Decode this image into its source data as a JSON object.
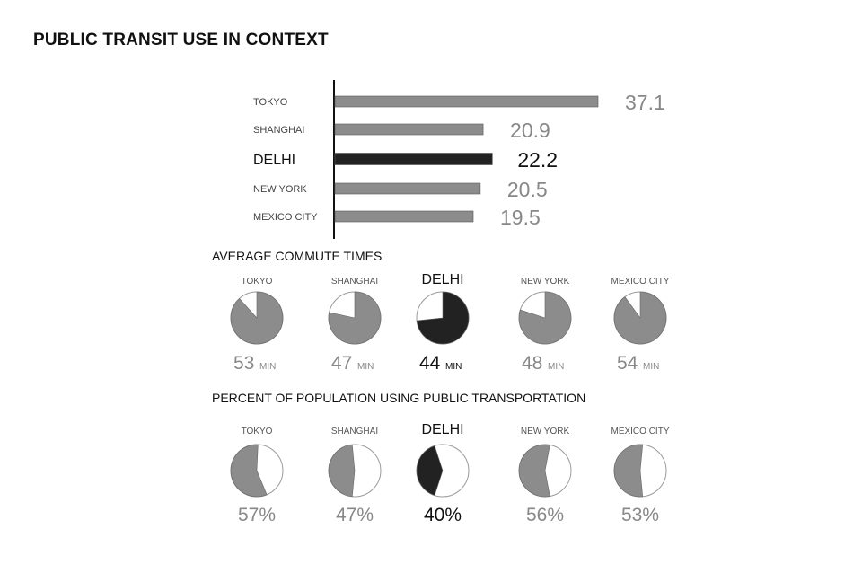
{
  "title": "PUBLIC TRANSIT USE IN CONTEXT",
  "colors": {
    "bar": "#8c8c8c",
    "highlight": "#222222",
    "pie_empty": "#ffffff",
    "pie_stroke": "#9a9a9a"
  },
  "highlight_city": "DELHI",
  "chart_data": [
    {
      "type": "bar",
      "orientation": "horizontal",
      "title": "",
      "categories": [
        "TOKYO",
        "SHANGHAI",
        "DELHI",
        "NEW YORK",
        "MEXICO CITY"
      ],
      "values": [
        37.1,
        20.9,
        22.2,
        20.5,
        19.5
      ],
      "labels": [
        "37.1",
        "20.9",
        "22.2",
        "20.5",
        "19.5"
      ],
      "xlim": [
        0,
        37.1
      ]
    },
    {
      "type": "pie",
      "title": "AVERAGE COMMUTE TIMES",
      "categories": [
        "TOKYO",
        "SHANGHAI",
        "DELHI",
        "NEW YORK",
        "MEXICO CITY"
      ],
      "values": [
        53,
        47,
        44,
        48,
        54
      ],
      "unit": "MIN",
      "full_scale": 60
    },
    {
      "type": "pie",
      "title": "PERCENT OF POPULATION USING PUBLIC TRANSPORTATION",
      "categories": [
        "TOKYO",
        "SHANGHAI",
        "DELHI",
        "NEW YORK",
        "MEXICO CITY"
      ],
      "values": [
        57,
        47,
        40,
        56,
        53
      ],
      "labels": [
        "57%",
        "47%",
        "40%",
        "56%",
        "53%"
      ],
      "full_scale": 100
    }
  ]
}
